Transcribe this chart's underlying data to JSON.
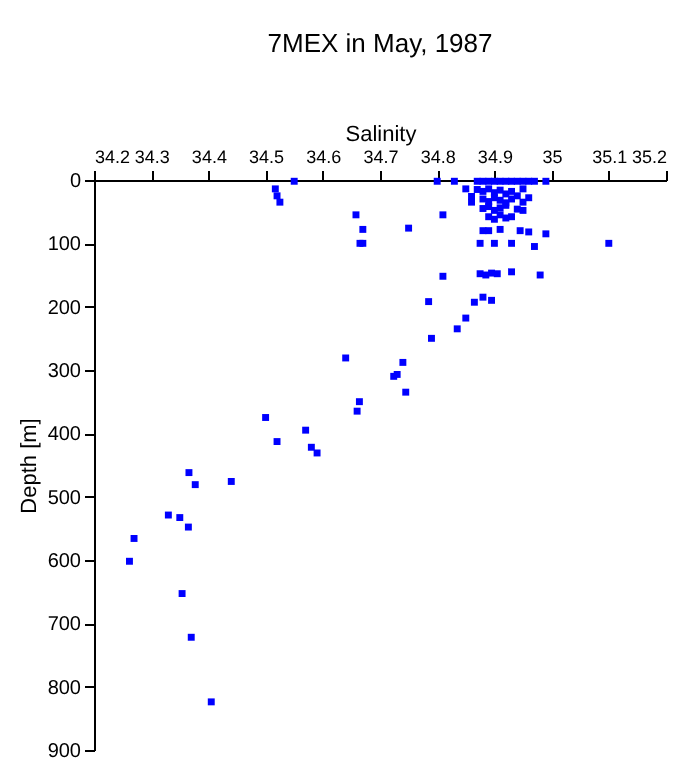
{
  "chart_data": {
    "type": "scatter",
    "title": "7MEX in May, 1987",
    "xlabel": "Salinity",
    "ylabel": "Depth [m]",
    "x": [
      34.517,
      34.52,
      34.525,
      34.55,
      34.658,
      34.67,
      34.665,
      34.67,
      34.75,
      34.8,
      34.81,
      34.83,
      34.85,
      34.86,
      34.86,
      34.87,
      34.88,
      34.89,
      34.9,
      34.91,
      34.92,
      34.93,
      34.94,
      34.95,
      34.96,
      34.97,
      34.99,
      34.87,
      34.88,
      34.89,
      34.9,
      34.91,
      34.92,
      34.93,
      34.94,
      34.95,
      34.88,
      34.89,
      34.9,
      34.91,
      34.92,
      34.93,
      34.95,
      34.96,
      34.88,
      34.89,
      34.9,
      34.91,
      34.92,
      34.94,
      34.95,
      34.89,
      34.9,
      34.91,
      34.92,
      34.93,
      34.88,
      34.875,
      34.89,
      34.9,
      34.91,
      34.93,
      34.945,
      34.96,
      34.97,
      34.99,
      35.1,
      34.98,
      34.93,
      34.875,
      34.885,
      34.895,
      34.905,
      34.81,
      34.88,
      34.895,
      34.865,
      34.785,
      34.85,
      34.835,
      34.79,
      34.64,
      34.724,
      34.73,
      34.74,
      34.745,
      34.664,
      34.66,
      34.5,
      34.52,
      34.57,
      34.58,
      34.59,
      34.366,
      34.377,
      34.44,
      34.33,
      34.35,
      34.365,
      34.27,
      34.262,
      34.354,
      34.37,
      34.405
    ],
    "values": [
      14,
      25,
      35,
      2,
      55,
      78,
      100,
      100,
      76,
      2,
      55,
      2,
      14,
      26,
      35,
      2,
      2,
      2,
      2,
      2,
      2,
      2,
      2,
      2,
      2,
      2,
      2,
      15,
      18,
      14,
      20,
      16,
      22,
      18,
      25,
      14,
      30,
      34,
      28,
      32,
      36,
      30,
      35,
      28,
      45,
      42,
      48,
      44,
      40,
      46,
      48,
      58,
      62,
      55,
      60,
      58,
      80,
      100,
      80,
      100,
      78,
      100,
      80,
      82,
      105,
      85,
      100,
      150,
      145,
      148,
      150,
      147,
      148,
      152,
      185,
      190,
      193,
      192,
      218,
      235,
      250,
      281,
      310,
      307,
      288,
      335,
      350,
      365,
      375,
      413,
      395,
      422,
      431,
      462,
      481,
      476,
      529,
      533,
      548,
      566,
      602,
      653,
      722,
      824
    ],
    "color": "#0000ff",
    "marker": "square",
    "xlim": [
      34.2,
      35.2
    ],
    "xticks": [
      34.2,
      34.3,
      34.4,
      34.5,
      34.6,
      34.7,
      34.8,
      34.9,
      35,
      35.1,
      35.2
    ],
    "ylim": [
      900,
      0
    ],
    "yticks": [
      0,
      100,
      200,
      300,
      400,
      500,
      600,
      700,
      800,
      900
    ],
    "grid": false
  }
}
